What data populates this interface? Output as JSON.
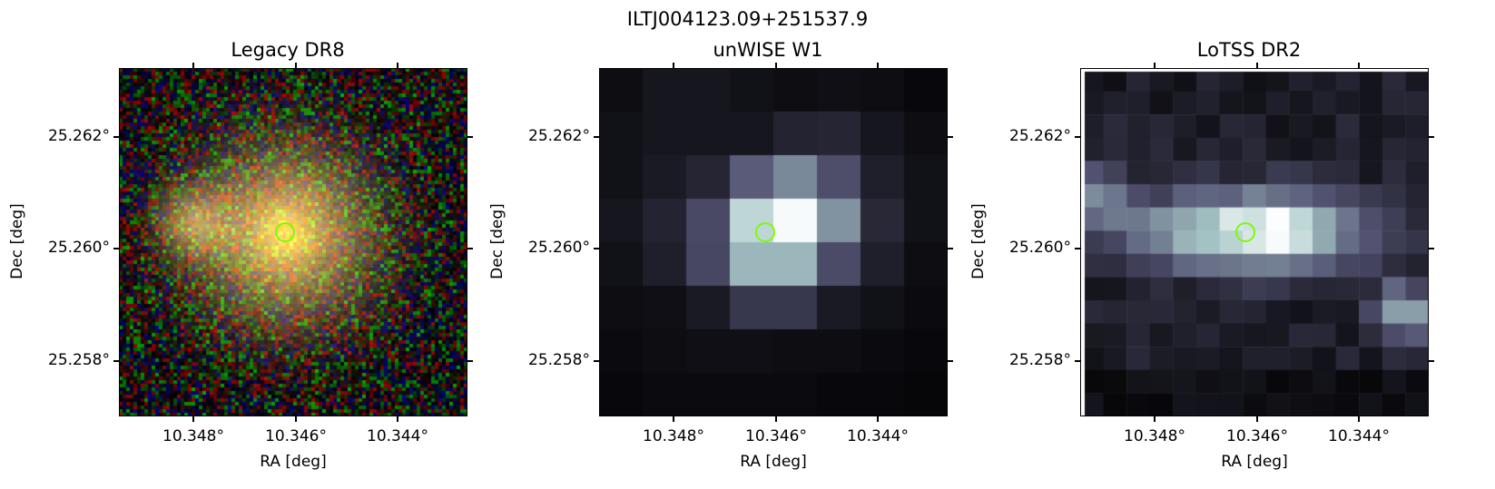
{
  "figure": {
    "title": "ILTJ004123.09+251537.9",
    "marker_color": "#7CFC00"
  },
  "panels": [
    {
      "title": "Legacy DR8",
      "xlabel": "RA [deg]",
      "ylabel": "Dec [deg]",
      "xticks": [
        "10.348°",
        "10.346°",
        "10.344°"
      ],
      "yticks": [
        "25.262°",
        "25.260°",
        "25.258°"
      ],
      "image": "optical color cutout, diffuse yellow galaxy on noisy background"
    },
    {
      "title": "unWISE W1",
      "xlabel": "RA [deg]",
      "ylabel": "Dec [deg]",
      "xticks": [
        "10.348°",
        "10.346°",
        "10.344°"
      ],
      "yticks": [
        "25.262°",
        "25.260°",
        "25.258°"
      ],
      "image": "bone colormap pixel map, bright compact source"
    },
    {
      "title": "LoTSS DR2",
      "xlabel": "RA [deg]",
      "ylabel": "Dec [deg]",
      "xticks": [
        "10.348°",
        "10.346°",
        "10.344°"
      ],
      "yticks": [
        "25.262°",
        "25.260°",
        "25.258°"
      ],
      "image": "bone colormap radio pixel map, elongated emission"
    }
  ]
}
